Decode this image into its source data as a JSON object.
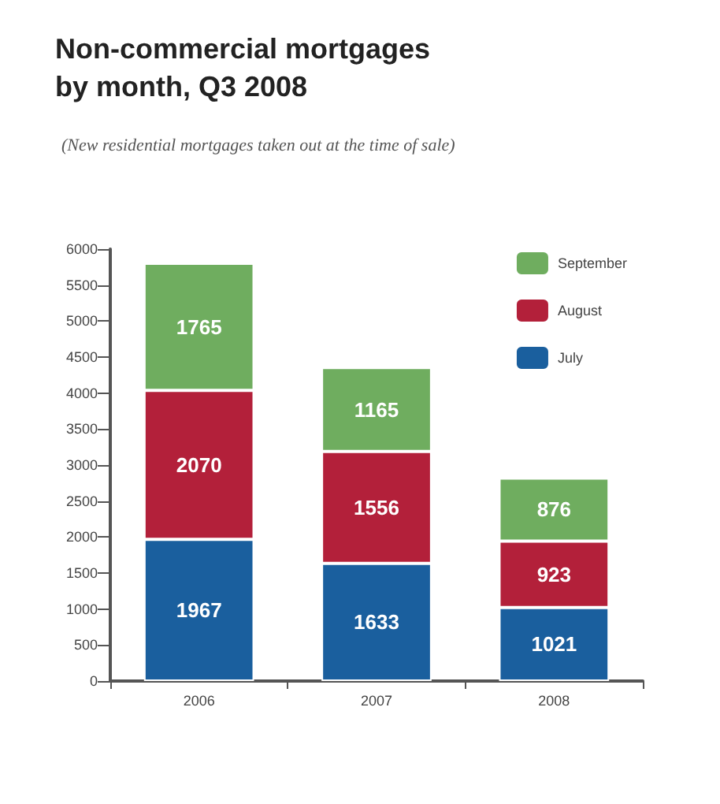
{
  "chart_data": {
    "type": "bar",
    "title": "Non-commercial mortgages by month, Q3 2008",
    "subtitle": "(New residential mortgages taken out at the time of sale)",
    "categories": [
      "2006",
      "2007",
      "2008"
    ],
    "stacked": true,
    "series": [
      {
        "name": "July",
        "color": "#1a5f9e",
        "values": [
          1967,
          1633,
          1021
        ]
      },
      {
        "name": "August",
        "color": "#b3203a",
        "values": [
          2070,
          1556,
          923
        ]
      },
      {
        "name": "September",
        "color": "#6fad5f",
        "values": [
          1765,
          1165,
          876
        ]
      }
    ],
    "ylim": [
      0,
      6000
    ],
    "yticks": [
      0,
      500,
      1000,
      1500,
      2000,
      2500,
      3000,
      3500,
      4000,
      4500,
      5000,
      5500,
      6000
    ],
    "grid": false,
    "legend": "top right",
    "data_labels": true
  }
}
